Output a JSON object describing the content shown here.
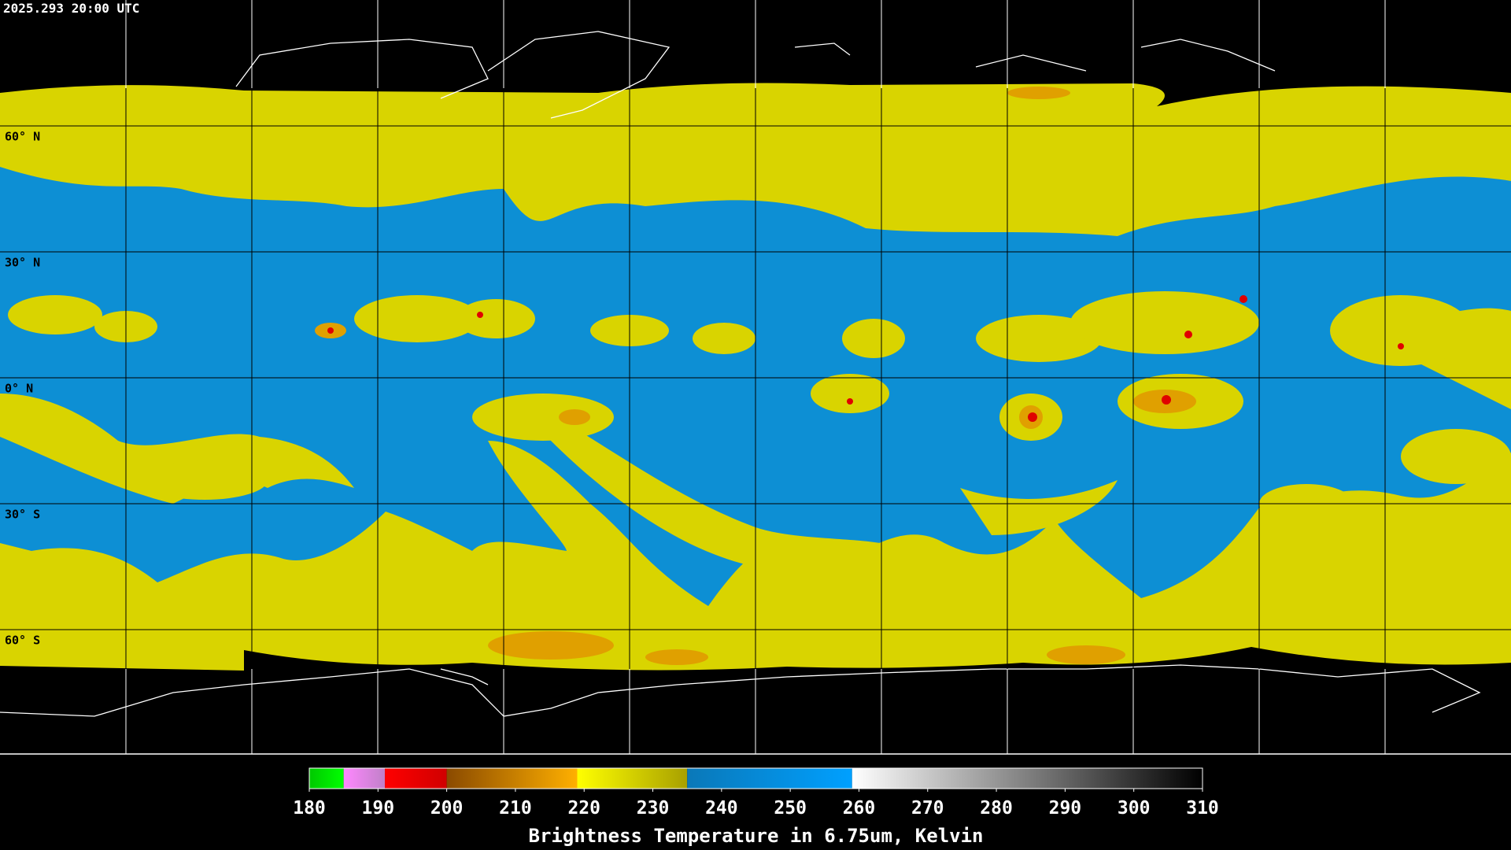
{
  "header": {
    "timestamp": "2025.293 20:00 UTC"
  },
  "map": {
    "lat_labels": [
      "60° N",
      "30° N",
      "0° N",
      "30° S",
      "60° S"
    ]
  },
  "colorbar": {
    "label": "Brightness Temperature in 6.75um, Kelvin",
    "range": [
      180,
      310
    ],
    "ticks": [
      180,
      190,
      200,
      210,
      220,
      230,
      240,
      250,
      260,
      270,
      280,
      290,
      300,
      310
    ],
    "segments": [
      {
        "from": 180,
        "to": 185,
        "colors": [
          "#00c800",
          "#00ff00"
        ]
      },
      {
        "from": 185,
        "to": 191,
        "colors": [
          "#ff88ff",
          "#c080c8"
        ]
      },
      {
        "from": 191,
        "to": 200,
        "colors": [
          "#ff0000",
          "#d00000"
        ]
      },
      {
        "from": 200,
        "to": 219,
        "colors": [
          "#8a4a00",
          "#ffb000"
        ]
      },
      {
        "from": 219,
        "to": 235,
        "colors": [
          "#ffff00",
          "#a8a000"
        ]
      },
      {
        "from": 235,
        "to": 259,
        "colors": [
          "#0a78b8",
          "#00a0ff"
        ]
      },
      {
        "from": 259,
        "to": 310,
        "colors": [
          "#ffffff",
          "#000000"
        ]
      }
    ]
  }
}
